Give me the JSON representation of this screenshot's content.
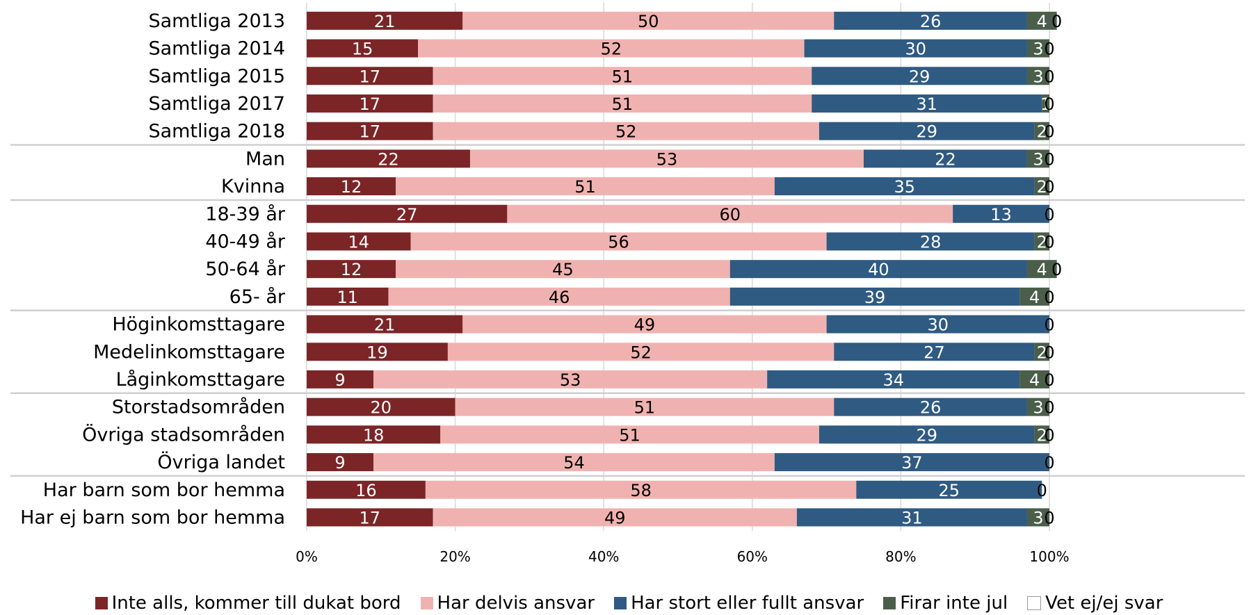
{
  "chart_data": {
    "type": "bar",
    "orientation": "horizontal",
    "stacked": true,
    "categories": [
      "Samtliga 2013",
      "Samtliga 2014",
      "Samtliga 2015",
      "Samtliga 2017",
      "Samtliga 2018",
      "Man",
      "Kvinna",
      "18-39 år",
      "40-49 år",
      "50-64 år",
      "65-  år",
      "Höginkomsttagare",
      "Medelinkomsttagare",
      "Låginkomsttagare",
      "Storstadsområden",
      "Övriga stadsområden",
      "Övriga landet",
      "Har barn som bor hemma",
      "Har ej barn som bor hemma"
    ],
    "groups": [
      [
        0,
        1,
        2,
        3,
        4
      ],
      [
        5,
        6
      ],
      [
        7,
        8,
        9,
        10
      ],
      [
        11,
        12,
        13
      ],
      [
        14,
        15,
        16
      ],
      [
        17,
        18
      ]
    ],
    "series": [
      {
        "name": "Inte alls, kommer till  dukat bord",
        "color": "#7b2527",
        "values": [
          21,
          15,
          17,
          17,
          17,
          22,
          12,
          27,
          14,
          12,
          11,
          21,
          19,
          9,
          20,
          18,
          9,
          16,
          17
        ]
      },
      {
        "name": "Har delvis ansvar",
        "color": "#f0b2b0",
        "values": [
          50,
          52,
          51,
          51,
          52,
          53,
          51,
          60,
          56,
          45,
          46,
          49,
          52,
          53,
          51,
          51,
          54,
          58,
          49
        ]
      },
      {
        "name": "Har stort eller fullt ansvar",
        "color": "#2f5a82",
        "values": [
          26,
          30,
          29,
          31,
          29,
          22,
          35,
          13,
          28,
          40,
          39,
          30,
          27,
          34,
          26,
          29,
          37,
          25,
          31
        ]
      },
      {
        "name": "Firar inte jul",
        "color": "#4a5e4a",
        "values": [
          4,
          3,
          3,
          1,
          2,
          3,
          2,
          0,
          2,
          4,
          4,
          0,
          2,
          4,
          3,
          2,
          0,
          0,
          3
        ]
      },
      {
        "name": "Vet ej/ej svar",
        "color": "#ffffff",
        "values": [
          0,
          0,
          0,
          0,
          0,
          0,
          0,
          0,
          0,
          0,
          0,
          0,
          0,
          0,
          0,
          0,
          0,
          0,
          0
        ]
      }
    ],
    "label_colors": [
      "#ffffff",
      "#000000",
      "#ffffff",
      "#ffffff",
      "#000000"
    ],
    "x_ticks": [
      "0%",
      "20%",
      "40%",
      "60%",
      "80%",
      "100%"
    ],
    "xlim": [
      0,
      100
    ],
    "grid": true,
    "legend_position": "bottom",
    "title": "",
    "xlabel": "",
    "ylabel": ""
  }
}
